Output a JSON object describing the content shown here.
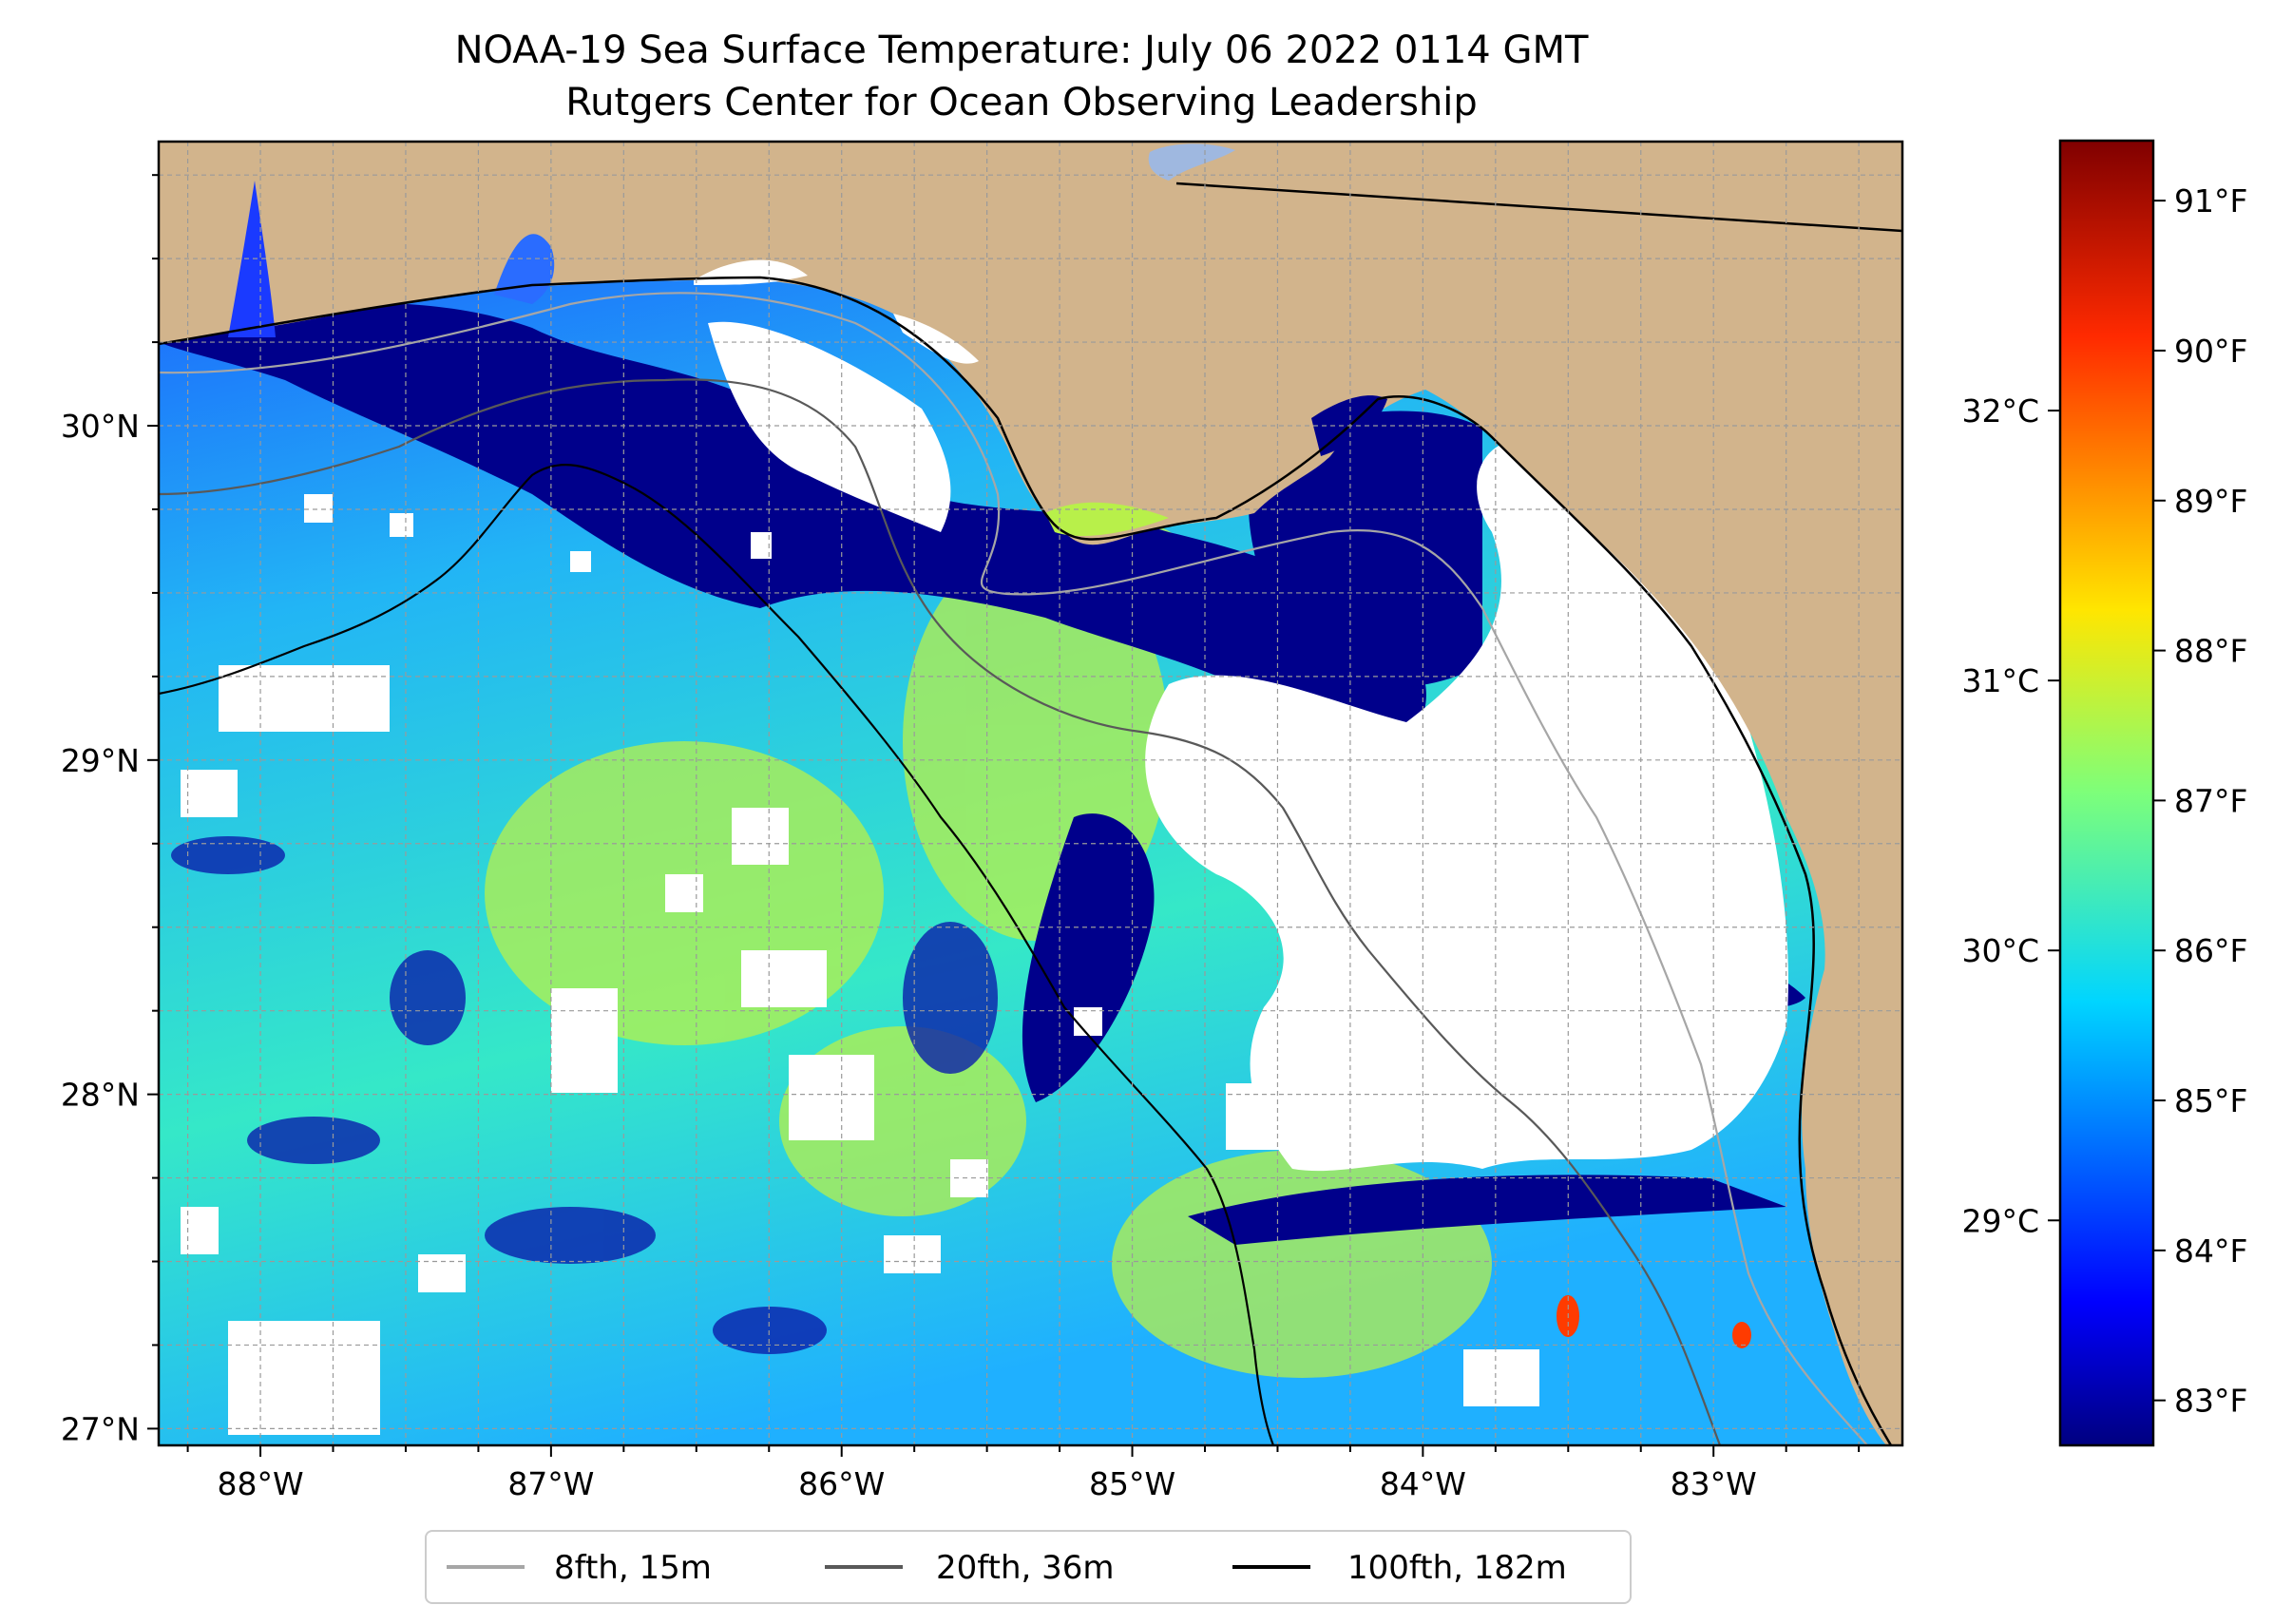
{
  "figure": {
    "title": "NOAA-19 Sea Surface Temperature: July 06 2022 0114 GMT",
    "subtitle": "Rutgers Center for Ocean Observing Leadership"
  },
  "map": {
    "lon_range": [
      -88.35,
      -82.35
    ],
    "lat_range": [
      26.95,
      30.85
    ],
    "lon_ticks": [
      {
        "value": -88,
        "label": "88°W"
      },
      {
        "value": -87,
        "label": "87°W"
      },
      {
        "value": -86,
        "label": "86°W"
      },
      {
        "value": -85,
        "label": "85°W"
      },
      {
        "value": -84,
        "label": "84°W"
      },
      {
        "value": -83,
        "label": "83°W"
      }
    ],
    "lat_ticks": [
      {
        "value": 27,
        "label": "27°N"
      },
      {
        "value": 28,
        "label": "28°N"
      },
      {
        "value": 29,
        "label": "29°N"
      },
      {
        "value": 30,
        "label": "30°N"
      }
    ],
    "gridlines": true,
    "land_color": "#d2b48c",
    "cloud_mask_color": "#ffffff"
  },
  "colorbar": {
    "colormap": "jet",
    "range_f": [
      82.7,
      91.4
    ],
    "fahrenheit_ticks": [
      {
        "value": 83,
        "label": "83°F"
      },
      {
        "value": 84,
        "label": "84°F"
      },
      {
        "value": 85,
        "label": "85°F"
      },
      {
        "value": 86,
        "label": "86°F"
      },
      {
        "value": 87,
        "label": "87°F"
      },
      {
        "value": 88,
        "label": "88°F"
      },
      {
        "value": 89,
        "label": "89°F"
      },
      {
        "value": 90,
        "label": "90°F"
      },
      {
        "value": 91,
        "label": "91°F"
      }
    ],
    "celsius_ticks": [
      {
        "value": 29,
        "label": "29°C"
      },
      {
        "value": 30,
        "label": "30°C"
      },
      {
        "value": 31,
        "label": "31°C"
      },
      {
        "value": 32,
        "label": "32°C"
      }
    ]
  },
  "legend": {
    "placement": "bottom-center",
    "entries": [
      {
        "label": "8fth, 15m",
        "color": "#a6a6a6"
      },
      {
        "label": "20fth, 36m",
        "color": "#595959"
      },
      {
        "label": "100fth, 182m",
        "color": "#000000"
      }
    ]
  }
}
